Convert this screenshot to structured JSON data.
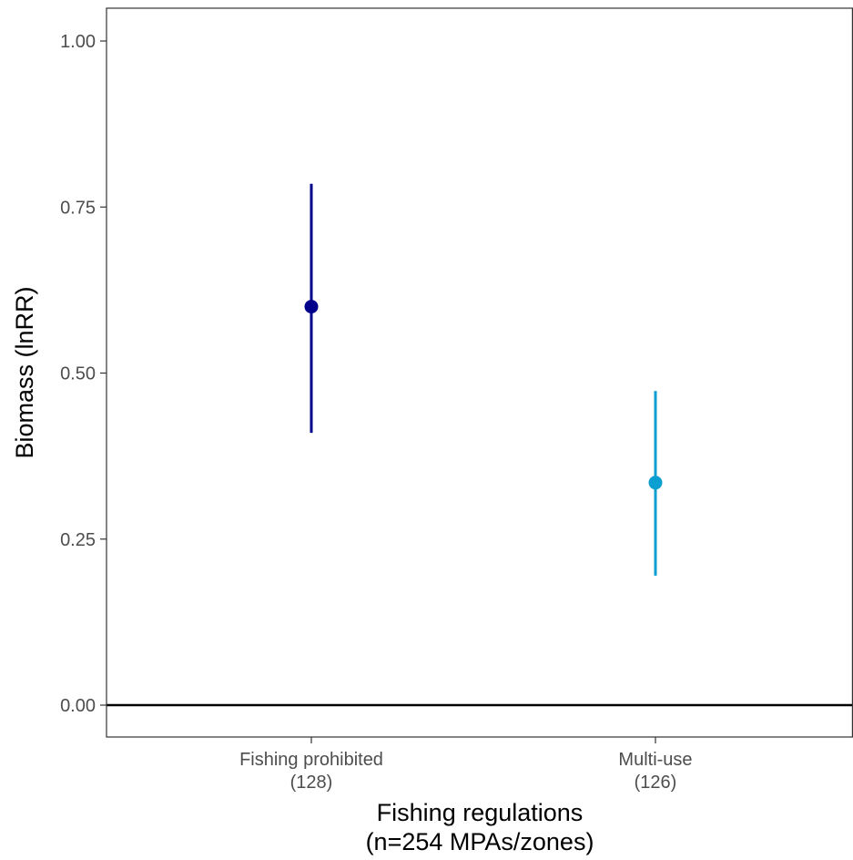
{
  "chart_data": {
    "type": "scatter",
    "xlabel": [
      "Fishing regulations",
      "(n=254 MPAs/zones)"
    ],
    "ylabel": "Biomass (lnRR)",
    "ylim": [
      -0.05,
      1.05
    ],
    "yticks": [
      0,
      0.25,
      0.5,
      0.75,
      1.0
    ],
    "ytick_labels": [
      "0.00",
      "0.25",
      "0.50",
      "0.75",
      "1.00"
    ],
    "categories": [
      {
        "label": "Fishing prohibited",
        "n_label": "(128)"
      },
      {
        "label": "Multi-use",
        "n_label": "(126)"
      }
    ],
    "points": [
      {
        "category": "Fishing prohibited",
        "estimate": 0.6,
        "lower": 0.41,
        "upper": 0.785,
        "color": "#00008B"
      },
      {
        "category": "Multi-use",
        "estimate": 0.335,
        "lower": 0.195,
        "upper": 0.473,
        "color": "#0A9FD0"
      }
    ],
    "reference_line": {
      "y": 0,
      "color": "#000000"
    },
    "grid": false,
    "legend": "none"
  }
}
